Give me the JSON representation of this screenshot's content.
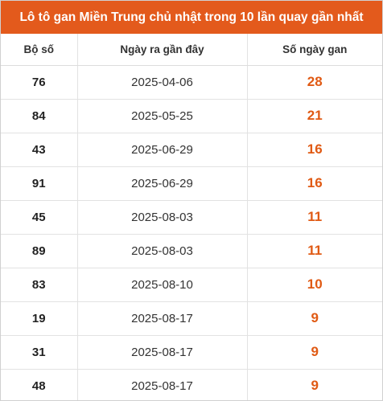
{
  "title": "Lô tô gan Miền Trung chủ nhật trong 10 lần quay gần nhất",
  "columns": [
    "Bộ số",
    "Ngày ra gần đây",
    "Số ngày gan"
  ],
  "rows": [
    {
      "number": "76",
      "date": "2025-04-06",
      "days": "28"
    },
    {
      "number": "84",
      "date": "2025-05-25",
      "days": "21"
    },
    {
      "number": "43",
      "date": "2025-06-29",
      "days": "16"
    },
    {
      "number": "91",
      "date": "2025-06-29",
      "days": "16"
    },
    {
      "number": "45",
      "date": "2025-08-03",
      "days": "11"
    },
    {
      "number": "89",
      "date": "2025-08-03",
      "days": "11"
    },
    {
      "number": "83",
      "date": "2025-08-10",
      "days": "10"
    },
    {
      "number": "19",
      "date": "2025-08-17",
      "days": "9"
    },
    {
      "number": "31",
      "date": "2025-08-17",
      "days": "9"
    },
    {
      "number": "48",
      "date": "2025-08-17",
      "days": "9"
    }
  ],
  "colors": {
    "header_bg": "#e35a1c",
    "gan_text": "#e05a14"
  }
}
